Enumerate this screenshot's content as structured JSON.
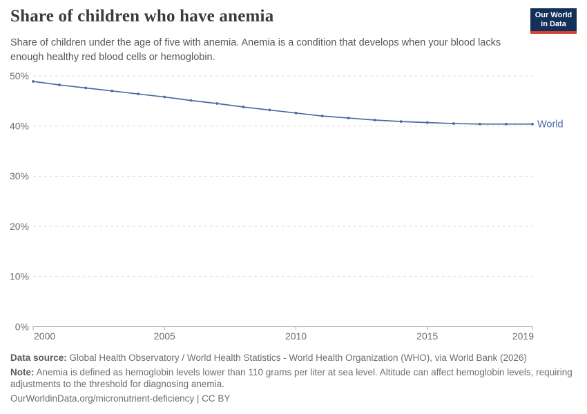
{
  "header": {
    "title": "Share of children who have anemia",
    "subtitle": "Share of children under the age of five with anemia. Anemia is a condition that develops when your blood lacks enough healthy red blood cells or hemoglobin.",
    "logo": {
      "line1": "Our World",
      "line2": "in Data",
      "bg_color": "#12305a",
      "bar_color": "#d7412f"
    }
  },
  "chart_data": {
    "type": "line",
    "title": "Share of children who have anemia",
    "x": [
      2000,
      2001,
      2002,
      2003,
      2004,
      2005,
      2006,
      2007,
      2008,
      2009,
      2010,
      2011,
      2012,
      2013,
      2014,
      2015,
      2016,
      2017,
      2018,
      2019
    ],
    "series": [
      {
        "name": "World",
        "color": "#4b68a2",
        "values": [
          48.9,
          48.2,
          47.6,
          47.0,
          46.4,
          45.8,
          45.1,
          44.5,
          43.8,
          43.2,
          42.6,
          42.0,
          41.6,
          41.2,
          40.9,
          40.7,
          40.5,
          40.4,
          40.4,
          40.4
        ]
      }
    ],
    "xlabel": "",
    "ylabel": "",
    "ylim": [
      0,
      50
    ],
    "yticks": [
      0,
      10,
      20,
      30,
      40,
      50
    ],
    "ytick_suffix": "%",
    "xticks": [
      2000,
      2005,
      2010,
      2015,
      2019
    ],
    "grid": "horizontal-dashed",
    "legend_position": "end-of-line",
    "colors": {
      "gridline": "#dcdcdc",
      "axis": "#a5a5a5",
      "tick_text": "#6b6b6b"
    }
  },
  "footer": {
    "data_source_label": "Data source:",
    "data_source_text": "Global Health Observatory / World Health Statistics - World Health Organization (WHO), via World Bank (2026)",
    "note_label": "Note:",
    "note_text": "Anemia is defined as hemoglobin levels lower than 110 grams per liter at sea level. Altitude can affect hemoglobin levels, requiring adjustments to the threshold for diagnosing anemia.",
    "citation": "OurWorldinData.org/micronutrient-deficiency | CC BY"
  }
}
